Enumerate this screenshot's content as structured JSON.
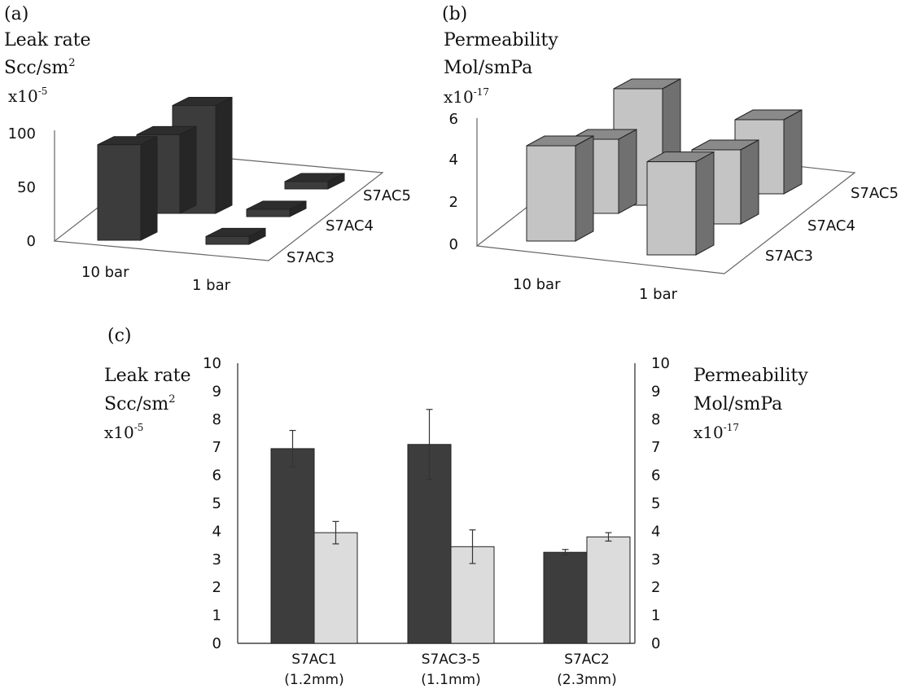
{
  "colors": {
    "dark_front": "#3c3c3c",
    "dark_side": "#262626",
    "dark_top": "#2d2d2d",
    "light_front": "#c4c4c4",
    "light_side": "#707070",
    "light_top": "#8a8a8a",
    "leak_bar": "#3d3d3d",
    "perm_bar": "#dcdcdc",
    "axis": "#555555"
  },
  "chart_data": [
    {
      "panel": "(a)",
      "type": "bar",
      "projection": "3d",
      "ylabel_lines": [
        "Leak rate",
        "Scc/sm",
        "x10"
      ],
      "ylabel_superscripts": [
        "",
        "2",
        "-5"
      ],
      "x_categories": [
        "10 bar",
        "1  bar"
      ],
      "z_categories": [
        "S7AC3",
        "S7AC4",
        "S7AC5"
      ],
      "yticks": [
        "0",
        "50",
        "100"
      ],
      "ylim": [
        0,
        100
      ],
      "values": {
        "S7AC3": [
          85,
          6
        ],
        "S7AC4": [
          70,
          5
        ],
        "S7AC5": [
          96,
          4
        ]
      }
    },
    {
      "panel": "(b)",
      "type": "bar",
      "projection": "3d",
      "ylabel_lines": [
        "Permeability",
        "Mol/smPa",
        "x10"
      ],
      "ylabel_superscripts": [
        "",
        "",
        "-17"
      ],
      "x_categories": [
        "10 bar",
        "1 bar"
      ],
      "z_categories": [
        "S7AC3",
        "S7AC4",
        "S7AC5"
      ],
      "yticks": [
        "0",
        "2",
        "4",
        "6"
      ],
      "ylim": [
        0,
        6
      ],
      "values": {
        "S7AC3": [
          4.5,
          4.4
        ],
        "S7AC4": [
          3.5,
          3.5
        ],
        "S7AC5": [
          5.5,
          3.5
        ]
      }
    },
    {
      "panel": "(c)",
      "type": "bar",
      "categories": [
        [
          "S7AC1",
          "(1.2mm)"
        ],
        [
          "S7AC3-5",
          "(1.1mm)"
        ],
        [
          "S7AC2",
          "(2.3mm)"
        ]
      ],
      "y_left_label_lines": [
        "Leak rate",
        "Scc/sm",
        "x10"
      ],
      "y_left_label_superscripts": [
        "",
        "2",
        "-5"
      ],
      "y_right_label_lines": [
        "Permeability",
        "Mol/smPa",
        "x10"
      ],
      "y_right_label_superscripts": [
        "",
        "",
        "-17"
      ],
      "yticks": [
        "0",
        "1",
        "2",
        "3",
        "4",
        "5",
        "6",
        "7",
        "8",
        "9",
        "10"
      ],
      "ylim": [
        0,
        10
      ],
      "series": [
        {
          "values": [
            6.95,
            7.1,
            3.25
          ],
          "errors": [
            0.65,
            1.25,
            0.1
          ]
        },
        {
          "values": [
            3.95,
            3.45,
            3.8
          ],
          "errors": [
            0.4,
            0.6,
            0.15
          ]
        }
      ]
    }
  ]
}
